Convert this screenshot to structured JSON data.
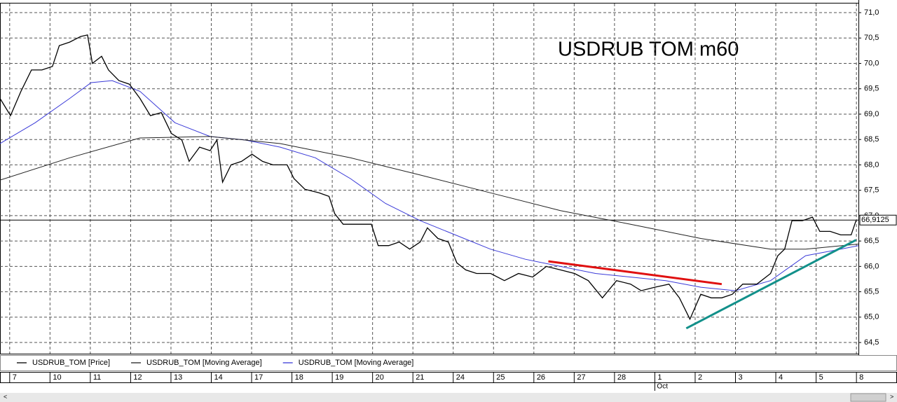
{
  "chart_data": {
    "type": "line",
    "title": "USDRUB TOM  m60",
    "xlim": [
      -0.24,
      21.05
    ],
    "xticks": [
      {
        "value": 0,
        "label": "7"
      },
      {
        "value": 1,
        "label": "10"
      },
      {
        "value": 2,
        "label": "11"
      },
      {
        "value": 3,
        "label": "12"
      },
      {
        "value": 4,
        "label": "13"
      },
      {
        "value": 5,
        "label": "14"
      },
      {
        "value": 6,
        "label": "17"
      },
      {
        "value": 7,
        "label": "18"
      },
      {
        "value": 8,
        "label": "19"
      },
      {
        "value": 9,
        "label": "20"
      },
      {
        "value": 10,
        "label": "21"
      },
      {
        "value": 11,
        "label": "24"
      },
      {
        "value": 12,
        "label": "25"
      },
      {
        "value": 13,
        "label": "26"
      },
      {
        "value": 14,
        "label": "27"
      },
      {
        "value": 15,
        "label": "28"
      },
      {
        "value": 16,
        "label": "1"
      },
      {
        "value": 17,
        "label": "2"
      },
      {
        "value": 18,
        "label": "3"
      },
      {
        "value": 19,
        "label": "4"
      },
      {
        "value": 20,
        "label": "5"
      },
      {
        "value": 21,
        "label": "8"
      }
    ],
    "annotations": [
      {
        "text": "Oct",
        "x": 16
      }
    ],
    "ylim": [
      64.28,
      71.18
    ],
    "yticks": [
      {
        "value": 64.5,
        "label": "64,5"
      },
      {
        "value": 65.0,
        "label": "65,0"
      },
      {
        "value": 65.5,
        "label": "65,5"
      },
      {
        "value": 66.0,
        "label": "66,0"
      },
      {
        "value": 66.5,
        "label": "66,5"
      },
      {
        "value": 67.0,
        "label": "67,0"
      },
      {
        "value": 67.5,
        "label": "67,5"
      },
      {
        "value": 68.0,
        "label": "68,0"
      },
      {
        "value": 68.5,
        "label": "68,5"
      },
      {
        "value": 69.0,
        "label": "69,0"
      },
      {
        "value": 69.5,
        "label": "69,5"
      },
      {
        "value": 70.0,
        "label": "70,0"
      },
      {
        "value": 70.5,
        "label": "70,5"
      },
      {
        "value": 71.0,
        "label": "71,0"
      }
    ],
    "grid": true,
    "last_price": {
      "value": 66.9125,
      "label": "66,9125"
    },
    "series": [
      {
        "name": "USDRUB_TOM [Price]",
        "color": "#000000",
        "width": 1.3,
        "x": [
          -0.24,
          0.02,
          0.28,
          0.54,
          0.8,
          1.06,
          1.23,
          1.49,
          1.76,
          1.93,
          2.05,
          2.28,
          2.45,
          2.71,
          2.97,
          3.23,
          3.49,
          3.76,
          4.01,
          4.27,
          4.45,
          4.71,
          4.97,
          5.14,
          5.28,
          5.49,
          5.75,
          6.01,
          6.27,
          6.53,
          6.88,
          7.05,
          7.32,
          7.67,
          7.92,
          8.06,
          8.27,
          8.62,
          8.97,
          9.14,
          9.4,
          9.66,
          9.92,
          10.18,
          10.36,
          10.62,
          10.88,
          11.09,
          11.31,
          11.58,
          11.93,
          12.27,
          12.62,
          12.97,
          13.31,
          13.66,
          14.01,
          14.35,
          14.7,
          15.05,
          15.4,
          15.66,
          16.0,
          16.35,
          16.61,
          16.87,
          17.14,
          17.4,
          17.66,
          17.92,
          18.18,
          18.53,
          18.87,
          19.05,
          19.22,
          19.4,
          19.66,
          19.91,
          20.09,
          20.35,
          20.61,
          20.87,
          20.99
        ],
        "values": [
          69.31,
          68.97,
          69.45,
          69.87,
          69.87,
          69.94,
          70.35,
          70.42,
          70.53,
          70.56,
          70.0,
          70.14,
          69.87,
          69.66,
          69.59,
          69.31,
          68.97,
          69.03,
          68.62,
          68.49,
          68.07,
          68.35,
          68.28,
          68.49,
          67.66,
          68.0,
          68.07,
          68.21,
          68.07,
          68.0,
          68.0,
          67.73,
          67.52,
          67.45,
          67.38,
          67.04,
          66.83,
          66.83,
          66.83,
          66.41,
          66.41,
          66.48,
          66.34,
          66.48,
          66.76,
          66.55,
          66.48,
          66.07,
          65.93,
          65.86,
          65.86,
          65.72,
          65.86,
          65.79,
          66.0,
          65.93,
          65.86,
          65.72,
          65.38,
          65.72,
          65.65,
          65.52,
          65.59,
          65.65,
          65.38,
          64.96,
          65.45,
          65.38,
          65.38,
          65.45,
          65.65,
          65.65,
          65.86,
          66.21,
          66.34,
          66.9,
          66.9,
          66.97,
          66.69,
          66.69,
          66.62,
          66.62,
          66.9
        ]
      },
      {
        "name": "USDRUB_TOM [Moving Average]",
        "color": "#222222",
        "width": 1,
        "x": [
          -0.24,
          1.49,
          3.23,
          4.97,
          6.71,
          8.45,
          10.18,
          11.92,
          13.66,
          15.4,
          17.14,
          18.87,
          19.74,
          21.05
        ],
        "values": [
          67.7,
          68.14,
          68.53,
          68.56,
          68.42,
          68.14,
          67.8,
          67.45,
          67.1,
          66.83,
          66.55,
          66.34,
          66.34,
          66.44
        ]
      },
      {
        "name": "USDRUB_TOM [Moving Average]",
        "color": "#3a3ad8",
        "width": 1,
        "x": [
          -0.24,
          0.63,
          1.49,
          2.02,
          2.54,
          3.23,
          4.1,
          4.97,
          5.84,
          6.71,
          7.58,
          8.45,
          9.32,
          10.18,
          11.05,
          11.92,
          12.79,
          13.66,
          14.53,
          15.4,
          16.27,
          17.14,
          18.0,
          18.87,
          19.74,
          20.61,
          21.05
        ],
        "values": [
          68.42,
          68.83,
          69.31,
          69.62,
          69.66,
          69.45,
          68.83,
          68.56,
          68.49,
          68.35,
          68.14,
          67.73,
          67.24,
          66.9,
          66.62,
          66.34,
          66.14,
          66.0,
          65.86,
          65.79,
          65.72,
          65.59,
          65.52,
          65.72,
          66.21,
          66.34,
          66.41
        ]
      }
    ],
    "trendlines": [
      {
        "color": "#e01010",
        "x": [
          13.36,
          17.66
        ],
        "values": [
          66.1,
          65.65
        ]
      },
      {
        "color": "#12908a",
        "x": [
          16.78,
          20.99
        ],
        "values": [
          64.78,
          66.52
        ]
      }
    ]
  }
}
